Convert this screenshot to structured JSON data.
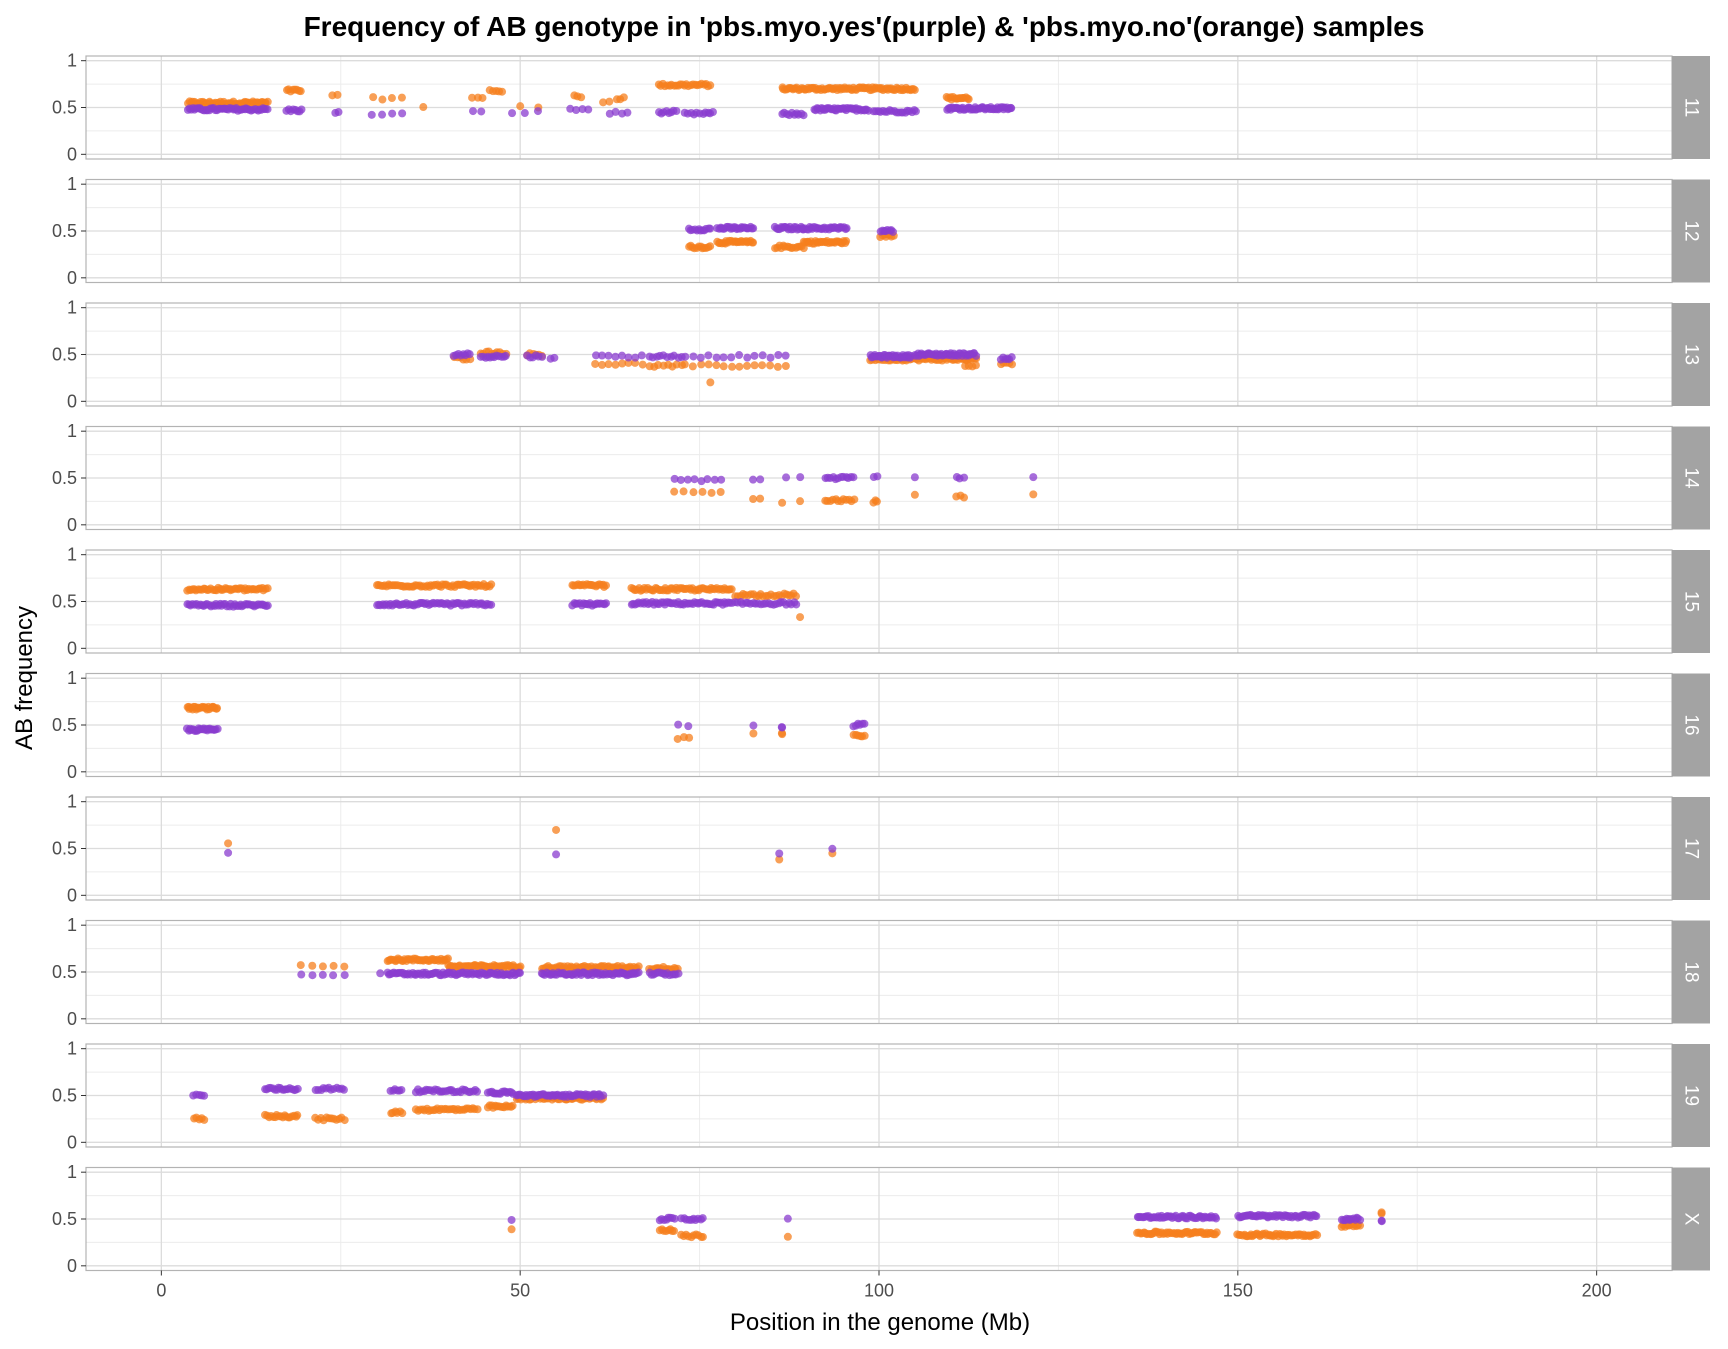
{
  "chart_data": {
    "type": "scatter",
    "title": "Frequency of AB genotype in 'pbs.myo.yes'(purple) & 'pbs.myo.no'(orange) samples",
    "xlabel": "Position in the genome (Mb)",
    "ylabel": "AB frequency",
    "xlim": [
      -10.5,
      210.5
    ],
    "ylim": [
      -0.05,
      1.05
    ],
    "x_ticks": [
      0,
      50,
      100,
      150,
      200
    ],
    "x_tick_labels": [
      "0",
      "50",
      "100",
      "150",
      "200"
    ],
    "y_ticks": [
      0,
      0.5,
      1
    ],
    "y_tick_labels": [
      "0",
      "0.5",
      "1"
    ],
    "grid": true,
    "colors": {
      "yes": "#8a3ccf",
      "no": "#f57f1e",
      "strip": "#a3a3a3",
      "strip_text": "#ffffff",
      "grid": "#dcdcdc",
      "grid_minor": "#ececec",
      "frame": "#b3b3b3"
    },
    "series_names": {
      "yes": "pbs.myo.yes",
      "no": "pbs.myo.no"
    },
    "panels": [
      {
        "label": "11",
        "yes": [
          {
            "x0": 3.7,
            "x1": 14.8,
            "y": 0.48,
            "n": 50
          },
          {
            "x0": 17.5,
            "x1": 19.5,
            "y": 0.47,
            "n": 8
          },
          {
            "x0": 24.3,
            "x1": 24.7,
            "y": 0.44,
            "n": 2
          },
          {
            "x0": 29.3,
            "x1": 33.5,
            "y": 0.43,
            "n": 4
          },
          {
            "x0": 43.5,
            "x1": 44.5,
            "y": 0.45,
            "n": 2
          },
          {
            "x0": 48.9,
            "x1": 52.5,
            "y": 0.45,
            "n": 3
          },
          {
            "x0": 57,
            "x1": 59.5,
            "y": 0.48,
            "n": 4
          },
          {
            "x0": 62.5,
            "x1": 65,
            "y": 0.44,
            "n": 4
          },
          {
            "x0": 69.3,
            "x1": 71.7,
            "y": 0.45,
            "n": 8
          },
          {
            "x0": 73,
            "x1": 75,
            "y": 0.43,
            "n": 6
          },
          {
            "x0": 75.5,
            "x1": 76.8,
            "y": 0.44,
            "n": 5
          },
          {
            "x0": 86.5,
            "x1": 89.5,
            "y": 0.43,
            "n": 10
          },
          {
            "x0": 91,
            "x1": 98.5,
            "y": 0.48,
            "n": 40
          },
          {
            "x0": 99.3,
            "x1": 105.2,
            "y": 0.46,
            "n": 20
          },
          {
            "x0": 109.5,
            "x1": 118.5,
            "y": 0.49,
            "n": 50
          }
        ],
        "no": [
          {
            "x0": 3.7,
            "x1": 14.8,
            "y": 0.55,
            "n": 50
          },
          {
            "x0": 17.5,
            "x1": 19.5,
            "y": 0.68,
            "n": 8
          },
          {
            "x0": 23.8,
            "x1": 24.5,
            "y": 0.62,
            "n": 2
          },
          {
            "x0": 29.5,
            "x1": 33.5,
            "y": 0.6,
            "n": 4
          },
          {
            "x0": 36.5,
            "x1": 36.5,
            "y": 0.5,
            "n": 1
          },
          {
            "x0": 43.3,
            "x1": 44.8,
            "y": 0.6,
            "n": 3
          },
          {
            "x0": 45.8,
            "x1": 47.5,
            "y": 0.68,
            "n": 5
          },
          {
            "x0": 50,
            "x1": 52.5,
            "y": 0.5,
            "n": 2
          },
          {
            "x0": 57.5,
            "x1": 58.5,
            "y": 0.62,
            "n": 3
          },
          {
            "x0": 61.5,
            "x1": 62.5,
            "y": 0.56,
            "n": 2
          },
          {
            "x0": 63.5,
            "x1": 64.5,
            "y": 0.6,
            "n": 3
          },
          {
            "x0": 69.3,
            "x1": 76.5,
            "y": 0.74,
            "n": 25
          },
          {
            "x0": 86.5,
            "x1": 105,
            "y": 0.7,
            "n": 90
          },
          {
            "x0": 109.5,
            "x1": 112.5,
            "y": 0.6,
            "n": 15
          }
        ]
      },
      {
        "label": "12",
        "yes": [
          {
            "x0": 73.5,
            "x1": 76.5,
            "y": 0.52,
            "n": 12
          },
          {
            "x0": 77.5,
            "x1": 82.5,
            "y": 0.53,
            "n": 25
          },
          {
            "x0": 85.5,
            "x1": 89.5,
            "y": 0.53,
            "n": 20
          },
          {
            "x0": 89.5,
            "x1": 95.5,
            "y": 0.53,
            "n": 30
          },
          {
            "x0": 100.2,
            "x1": 102,
            "y": 0.5,
            "n": 8
          }
        ],
        "no": [
          {
            "x0": 73.5,
            "x1": 76.5,
            "y": 0.33,
            "n": 12
          },
          {
            "x0": 77.5,
            "x1": 82.5,
            "y": 0.38,
            "n": 25
          },
          {
            "x0": 85.5,
            "x1": 89.5,
            "y": 0.33,
            "n": 15
          },
          {
            "x0": 89.5,
            "x1": 95.5,
            "y": 0.38,
            "n": 30
          },
          {
            "x0": 100.2,
            "x1": 102,
            "y": 0.45,
            "n": 8
          }
        ]
      },
      {
        "label": "13",
        "yes": [
          {
            "x0": 40.8,
            "x1": 43,
            "y": 0.5,
            "n": 8
          },
          {
            "x0": 44.5,
            "x1": 48,
            "y": 0.48,
            "n": 12
          },
          {
            "x0": 51,
            "x1": 53,
            "y": 0.48,
            "n": 6
          },
          {
            "x0": 54.3,
            "x1": 54.7,
            "y": 0.47,
            "n": 2
          },
          {
            "x0": 60.5,
            "x1": 67,
            "y": 0.48,
            "n": 8
          },
          {
            "x0": 68,
            "x1": 72.5,
            "y": 0.48,
            "n": 10
          },
          {
            "x0": 73,
            "x1": 87,
            "y": 0.48,
            "n": 14
          },
          {
            "x0": 98.8,
            "x1": 104.5,
            "y": 0.48,
            "n": 35
          },
          {
            "x0": 105,
            "x1": 113.5,
            "y": 0.5,
            "n": 45
          },
          {
            "x0": 117,
            "x1": 118.5,
            "y": 0.46,
            "n": 6
          }
        ],
        "no": [
          {
            "x0": 40.8,
            "x1": 43,
            "y": 0.46,
            "n": 6
          },
          {
            "x0": 44.5,
            "x1": 48,
            "y": 0.52,
            "n": 10
          },
          {
            "x0": 51,
            "x1": 53,
            "y": 0.5,
            "n": 6
          },
          {
            "x0": 60.5,
            "x1": 67,
            "y": 0.4,
            "n": 8
          },
          {
            "x0": 68,
            "x1": 72.5,
            "y": 0.38,
            "n": 8
          },
          {
            "x0": 73,
            "x1": 87,
            "y": 0.38,
            "n": 14
          },
          {
            "x0": 76.5,
            "x1": 76.5,
            "y": 0.2,
            "n": 1
          },
          {
            "x0": 98.8,
            "x1": 113.5,
            "y": 0.45,
            "n": 60
          },
          {
            "x0": 112,
            "x1": 113.5,
            "y": 0.38,
            "n": 4
          },
          {
            "x0": 117,
            "x1": 118.5,
            "y": 0.4,
            "n": 5
          }
        ]
      },
      {
        "label": "14",
        "yes": [
          {
            "x0": 71.5,
            "x1": 78,
            "y": 0.48,
            "n": 8
          },
          {
            "x0": 82.5,
            "x1": 83.5,
            "y": 0.49,
            "n": 2
          },
          {
            "x0": 87,
            "x1": 89,
            "y": 0.5,
            "n": 2
          },
          {
            "x0": 92.5,
            "x1": 96.5,
            "y": 0.5,
            "n": 12
          },
          {
            "x0": 99.3,
            "x1": 99.7,
            "y": 0.51,
            "n": 2
          },
          {
            "x0": 105,
            "x1": 105,
            "y": 0.5,
            "n": 1
          },
          {
            "x0": 110.8,
            "x1": 111.8,
            "y": 0.51,
            "n": 3
          },
          {
            "x0": 121.5,
            "x1": 121.5,
            "y": 0.51,
            "n": 1
          }
        ],
        "no": [
          {
            "x0": 71.5,
            "x1": 78,
            "y": 0.35,
            "n": 6
          },
          {
            "x0": 82.5,
            "x1": 83.5,
            "y": 0.28,
            "n": 2
          },
          {
            "x0": 86.5,
            "x1": 86.5,
            "y": 0.25,
            "n": 1
          },
          {
            "x0": 89,
            "x1": 89,
            "y": 0.25,
            "n": 1
          },
          {
            "x0": 92.5,
            "x1": 96.5,
            "y": 0.26,
            "n": 12
          },
          {
            "x0": 99.3,
            "x1": 99.7,
            "y": 0.25,
            "n": 3
          },
          {
            "x0": 105,
            "x1": 105,
            "y": 0.32,
            "n": 1
          },
          {
            "x0": 110.8,
            "x1": 111.8,
            "y": 0.3,
            "n": 3
          },
          {
            "x0": 121.5,
            "x1": 121.5,
            "y": 0.32,
            "n": 1
          }
        ]
      },
      {
        "label": "15",
        "yes": [
          {
            "x0": 3.6,
            "x1": 14.8,
            "y": 0.46,
            "n": 45
          },
          {
            "x0": 30,
            "x1": 46,
            "y": 0.47,
            "n": 60
          },
          {
            "x0": 57.3,
            "x1": 62,
            "y": 0.47,
            "n": 20
          },
          {
            "x0": 65.5,
            "x1": 79.5,
            "y": 0.48,
            "n": 55
          },
          {
            "x0": 80,
            "x1": 88.5,
            "y": 0.48,
            "n": 25
          }
        ],
        "no": [
          {
            "x0": 3.6,
            "x1": 14.8,
            "y": 0.63,
            "n": 45
          },
          {
            "x0": 30,
            "x1": 46,
            "y": 0.67,
            "n": 60
          },
          {
            "x0": 57.3,
            "x1": 62,
            "y": 0.67,
            "n": 20
          },
          {
            "x0": 65.5,
            "x1": 79.5,
            "y": 0.63,
            "n": 55
          },
          {
            "x0": 80,
            "x1": 88.5,
            "y": 0.57,
            "n": 25
          },
          {
            "x0": 89,
            "x1": 89,
            "y": 0.33,
            "n": 1
          }
        ]
      },
      {
        "label": "16",
        "yes": [
          {
            "x0": 3.6,
            "x1": 7.8,
            "y": 0.45,
            "n": 25
          },
          {
            "x0": 72,
            "x1": 73.5,
            "y": 0.5,
            "n": 2
          },
          {
            "x0": 82.5,
            "x1": 82.5,
            "y": 0.48,
            "n": 1
          },
          {
            "x0": 86.5,
            "x1": 86.5,
            "y": 0.48,
            "n": 2
          },
          {
            "x0": 96.5,
            "x1": 98,
            "y": 0.5,
            "n": 6
          }
        ],
        "no": [
          {
            "x0": 3.6,
            "x1": 7.8,
            "y": 0.68,
            "n": 25
          },
          {
            "x0": 72,
            "x1": 73.5,
            "y": 0.36,
            "n": 3
          },
          {
            "x0": 82.5,
            "x1": 82.5,
            "y": 0.4,
            "n": 1
          },
          {
            "x0": 86.5,
            "x1": 86.5,
            "y": 0.4,
            "n": 2
          },
          {
            "x0": 96.5,
            "x1": 98,
            "y": 0.38,
            "n": 6
          }
        ]
      },
      {
        "label": "17",
        "yes": [
          {
            "x0": 9.3,
            "x1": 9.3,
            "y": 0.45,
            "n": 1
          },
          {
            "x0": 55,
            "x1": 55,
            "y": 0.45,
            "n": 1
          },
          {
            "x0": 86.1,
            "x1": 86.1,
            "y": 0.46,
            "n": 1
          },
          {
            "x0": 93.5,
            "x1": 93.5,
            "y": 0.49,
            "n": 1
          }
        ],
        "no": [
          {
            "x0": 9.3,
            "x1": 9.3,
            "y": 0.57,
            "n": 1
          },
          {
            "x0": 55,
            "x1": 55,
            "y": 0.7,
            "n": 1
          },
          {
            "x0": 86.1,
            "x1": 86.1,
            "y": 0.39,
            "n": 1
          },
          {
            "x0": 93.5,
            "x1": 93.5,
            "y": 0.45,
            "n": 1
          }
        ]
      },
      {
        "label": "18",
        "yes": [
          {
            "x0": 19.5,
            "x1": 25.5,
            "y": 0.47,
            "n": 5
          },
          {
            "x0": 30.5,
            "x1": 30.5,
            "y": 0.5,
            "n": 1
          },
          {
            "x0": 31.5,
            "x1": 50,
            "y": 0.48,
            "n": 80
          },
          {
            "x0": 53,
            "x1": 66.5,
            "y": 0.48,
            "n": 60
          },
          {
            "x0": 68,
            "x1": 72,
            "y": 0.48,
            "n": 15
          }
        ],
        "no": [
          {
            "x0": 19.5,
            "x1": 25.5,
            "y": 0.57,
            "n": 5
          },
          {
            "x0": 31.5,
            "x1": 40,
            "y": 0.63,
            "n": 40
          },
          {
            "x0": 40,
            "x1": 50,
            "y": 0.56,
            "n": 50
          },
          {
            "x0": 53,
            "x1": 66.5,
            "y": 0.55,
            "n": 60
          },
          {
            "x0": 68,
            "x1": 72,
            "y": 0.54,
            "n": 15
          }
        ]
      },
      {
        "label": "19",
        "yes": [
          {
            "x0": 4.5,
            "x1": 6,
            "y": 0.5,
            "n": 5
          },
          {
            "x0": 14.5,
            "x1": 19,
            "y": 0.57,
            "n": 18
          },
          {
            "x0": 21.5,
            "x1": 25.5,
            "y": 0.57,
            "n": 12
          },
          {
            "x0": 32,
            "x1": 33.5,
            "y": 0.56,
            "n": 6
          },
          {
            "x0": 35.5,
            "x1": 44,
            "y": 0.55,
            "n": 30
          },
          {
            "x0": 45.5,
            "x1": 49,
            "y": 0.53,
            "n": 15
          },
          {
            "x0": 49.5,
            "x1": 61.5,
            "y": 0.5,
            "n": 55
          }
        ],
        "no": [
          {
            "x0": 4.5,
            "x1": 6,
            "y": 0.25,
            "n": 5
          },
          {
            "x0": 14.5,
            "x1": 19,
            "y": 0.28,
            "n": 18
          },
          {
            "x0": 21.5,
            "x1": 25.5,
            "y": 0.25,
            "n": 12
          },
          {
            "x0": 32,
            "x1": 33.5,
            "y": 0.32,
            "n": 6
          },
          {
            "x0": 35.5,
            "x1": 44,
            "y": 0.35,
            "n": 30
          },
          {
            "x0": 45.5,
            "x1": 49,
            "y": 0.38,
            "n": 15
          },
          {
            "x0": 49.5,
            "x1": 61.5,
            "y": 0.47,
            "n": 55
          }
        ]
      },
      {
        "label": "X",
        "yes": [
          {
            "x0": 48.8,
            "x1": 48.8,
            "y": 0.48,
            "n": 1
          },
          {
            "x0": 69.5,
            "x1": 71.5,
            "y": 0.5,
            "n": 8
          },
          {
            "x0": 72.5,
            "x1": 75.5,
            "y": 0.5,
            "n": 10
          },
          {
            "x0": 87.3,
            "x1": 87.3,
            "y": 0.5,
            "n": 1
          },
          {
            "x0": 136,
            "x1": 147,
            "y": 0.52,
            "n": 50
          },
          {
            "x0": 150,
            "x1": 161,
            "y": 0.53,
            "n": 50
          },
          {
            "x0": 164.5,
            "x1": 167,
            "y": 0.5,
            "n": 12
          },
          {
            "x0": 170,
            "x1": 170,
            "y": 0.48,
            "n": 2
          }
        ],
        "no": [
          {
            "x0": 48.8,
            "x1": 48.8,
            "y": 0.38,
            "n": 1
          },
          {
            "x0": 69.5,
            "x1": 71.5,
            "y": 0.38,
            "n": 8
          },
          {
            "x0": 72.5,
            "x1": 75.5,
            "y": 0.32,
            "n": 10
          },
          {
            "x0": 87.3,
            "x1": 87.3,
            "y": 0.32,
            "n": 1
          },
          {
            "x0": 136,
            "x1": 147,
            "y": 0.35,
            "n": 50
          },
          {
            "x0": 150,
            "x1": 161,
            "y": 0.33,
            "n": 50
          },
          {
            "x0": 164.5,
            "x1": 167,
            "y": 0.43,
            "n": 12
          },
          {
            "x0": 170,
            "x1": 170,
            "y": 0.56,
            "n": 2
          }
        ]
      }
    ]
  }
}
